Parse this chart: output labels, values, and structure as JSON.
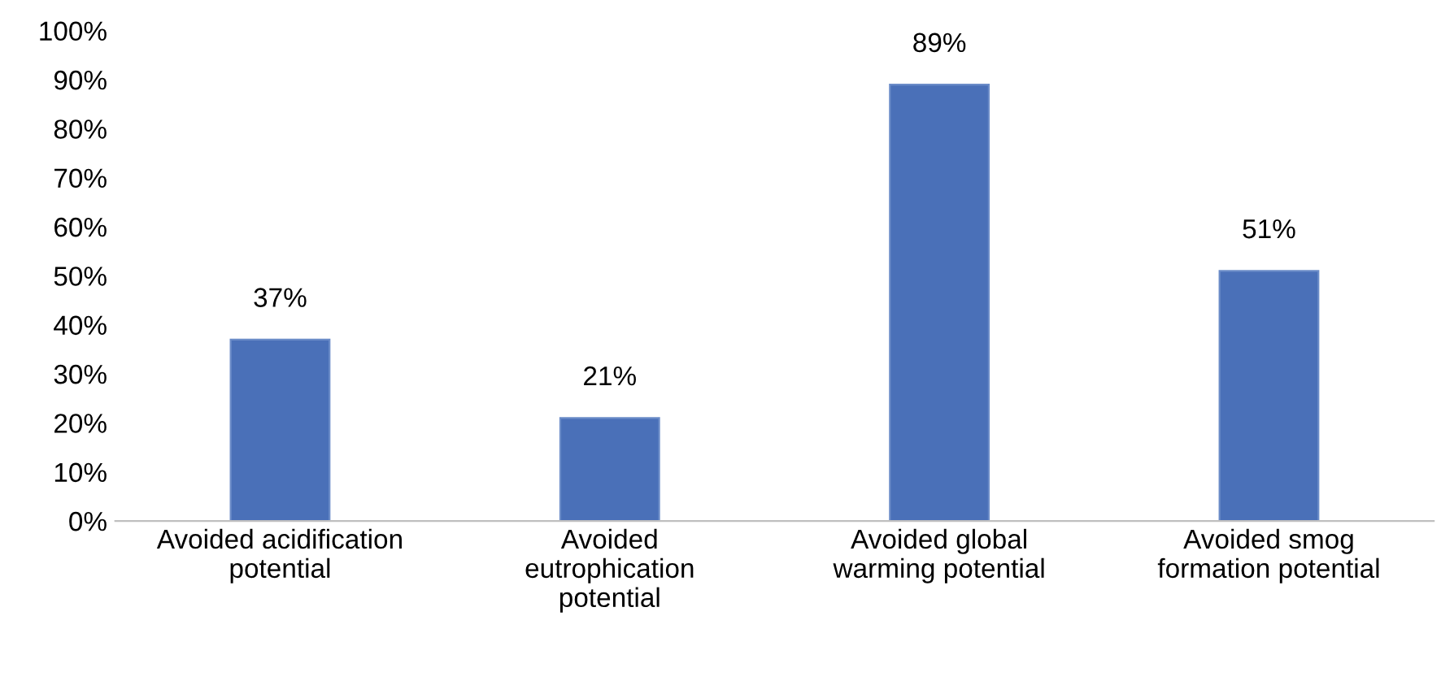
{
  "chart_data": {
    "type": "bar",
    "categories": [
      "Avoided acidification\npotential",
      "Avoided\neutrophication\npotential",
      "Avoided global\nwarming potential",
      "Avoided smog\nformation potential"
    ],
    "values": [
      37,
      21,
      89,
      51
    ],
    "value_labels": [
      "37%",
      "21%",
      "89%",
      "51%"
    ],
    "color": "#4a70b8",
    "ylim": [
      0,
      100
    ],
    "yticks": [
      {
        "value": 0,
        "label": "0%"
      },
      {
        "value": 10,
        "label": "10%"
      },
      {
        "value": 20,
        "label": "20%"
      },
      {
        "value": 30,
        "label": "30%"
      },
      {
        "value": 40,
        "label": "40%"
      },
      {
        "value": 50,
        "label": "50%"
      },
      {
        "value": 60,
        "label": "60%"
      },
      {
        "value": 70,
        "label": "70%"
      },
      {
        "value": 80,
        "label": "80%"
      },
      {
        "value": 90,
        "label": "90%"
      },
      {
        "value": 100,
        "label": "100%"
      }
    ],
    "grid": false
  }
}
